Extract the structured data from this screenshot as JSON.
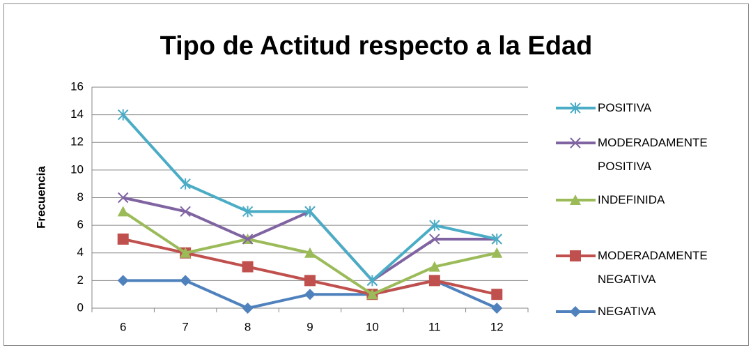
{
  "chart_data": {
    "type": "line",
    "title": "Tipo de Actitud  respecto a la Edad",
    "y_label": "Frecuencia",
    "categories": [
      "6",
      "7",
      "8",
      "9",
      "10",
      "11",
      "12"
    ],
    "ylim": [
      0,
      16
    ],
    "yticks": [
      0,
      2,
      4,
      6,
      8,
      10,
      12,
      14,
      16
    ],
    "grid": true,
    "legend": "right",
    "series": [
      {
        "name": "POSITIVA",
        "color": "#4bacc6",
        "marker": "star",
        "values": [
          14,
          9,
          7,
          7,
          2,
          6,
          5
        ]
      },
      {
        "name": "MODERADAMENTE POSITIVA",
        "color": "#8064a2",
        "marker": "x",
        "values": [
          8,
          7,
          5,
          7,
          2,
          5,
          5
        ]
      },
      {
        "name": "INDEFINIDA",
        "color": "#9bbb59",
        "marker": "triangle",
        "values": [
          7,
          4,
          5,
          4,
          1,
          3,
          4
        ]
      },
      {
        "name": "MODERADAMENTE NEGATIVA",
        "color": "#c0504d",
        "marker": "square",
        "values": [
          5,
          4,
          3,
          2,
          1,
          2,
          1
        ]
      },
      {
        "name": "NEGATIVA",
        "color": "#4f81bd",
        "marker": "diamond",
        "values": [
          2,
          2,
          0,
          1,
          1,
          2,
          0
        ]
      }
    ]
  }
}
